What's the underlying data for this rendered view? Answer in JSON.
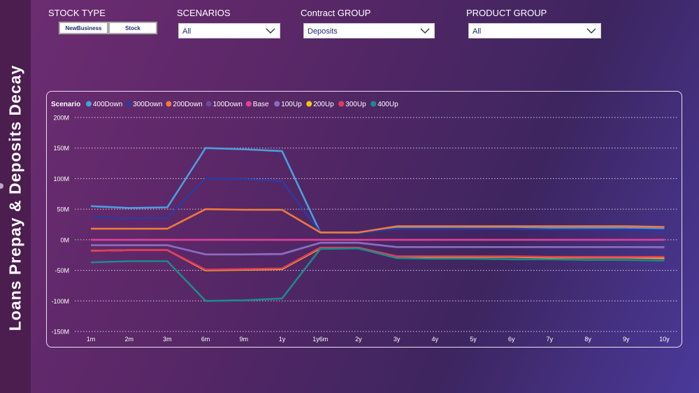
{
  "report": {
    "title": "Loans Prepay & Deposits Decay"
  },
  "filters": {
    "stock_type": {
      "label": "STOCK TYPE",
      "buttons": [
        "NewBusiness",
        "Stock"
      ]
    },
    "scenarios": {
      "label": "SCENARIOS",
      "value": "All"
    },
    "contract_group": {
      "label": "Contract GROUP",
      "value": "Deposits"
    },
    "product_group": {
      "label": "PRODUCT GROUP",
      "value": "All"
    }
  },
  "chart_data": {
    "type": "line",
    "legend_title": "Scenario",
    "legend_position": "top-left",
    "grid": true,
    "categories": [
      "1m",
      "2m",
      "3m",
      "6m",
      "9m",
      "1y",
      "1y6m",
      "2y",
      "3y",
      "4y",
      "5y",
      "6y",
      "7y",
      "8y",
      "9y",
      "10y"
    ],
    "y_ticks": [
      "200M",
      "150M",
      "100M",
      "50M",
      "0M",
      "-50M",
      "-100M",
      "-150M"
    ],
    "ylim": [
      -150,
      200
    ],
    "y_unit": "M",
    "series": [
      {
        "name": "400Down",
        "color": "#4a9ee0",
        "values": [
          55,
          52,
          53,
          150,
          148,
          145,
          12,
          11,
          20,
          20,
          20,
          20,
          19,
          19,
          19,
          18
        ]
      },
      {
        "name": "300Down",
        "color": "#2e3a9e",
        "values": [
          37,
          35,
          36,
          100,
          99,
          96,
          12,
          11,
          18,
          18,
          18,
          18,
          17,
          17,
          17,
          16
        ]
      },
      {
        "name": "200Down",
        "color": "#f07a3c",
        "values": [
          18,
          18,
          18,
          50,
          49,
          49,
          12,
          12,
          22,
          22,
          22,
          22,
          22,
          22,
          22,
          21
        ]
      },
      {
        "name": "100Down",
        "color": "#6b4a9a",
        "values": [
          -9,
          -9,
          -9,
          -24,
          -24,
          -24,
          -5,
          -5,
          -12,
          -12,
          -12,
          -12,
          -12,
          -12,
          -12,
          -13
        ]
      },
      {
        "name": "Base",
        "color": "#e0409a",
        "values": [
          0,
          0,
          0,
          0,
          0,
          0,
          0,
          0,
          0,
          0,
          0,
          0,
          0,
          0,
          0,
          0
        ]
      },
      {
        "name": "100Up",
        "color": "#8a6dbf",
        "values": [
          -9,
          -9,
          -9,
          -24,
          -24,
          -23,
          -5,
          -5,
          -12,
          -12,
          -12,
          -12,
          -12,
          -12,
          -12,
          -12
        ]
      },
      {
        "name": "200Up",
        "color": "#f2c418",
        "values": [
          -18,
          -17,
          -17,
          -50,
          -49,
          -48,
          -14,
          -14,
          -28,
          -28,
          -28,
          -28,
          -29,
          -29,
          -29,
          -30
        ]
      },
      {
        "name": "300Up",
        "color": "#e03c5a",
        "values": [
          -18,
          -17,
          -17,
          -49,
          -48,
          -47,
          -13,
          -13,
          -27,
          -27,
          -27,
          -27,
          -28,
          -28,
          -28,
          -28
        ]
      },
      {
        "name": "400Up",
        "color": "#1d8a8a",
        "values": [
          -37,
          -35,
          -35,
          -100,
          -99,
          -96,
          -15,
          -14,
          -30,
          -31,
          -31,
          -32,
          -32,
          -33,
          -33,
          -34
        ]
      }
    ]
  }
}
